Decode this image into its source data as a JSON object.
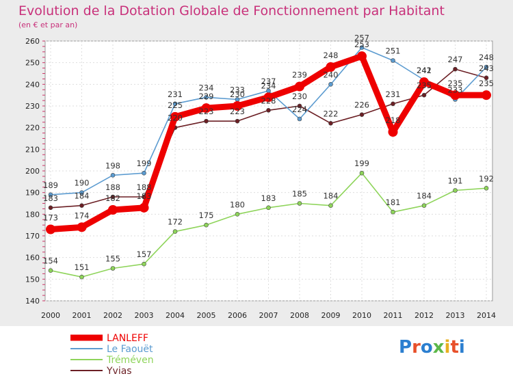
{
  "chart_data": {
    "type": "line",
    "title": "Evolution de la Dotation Globale de Fonctionnement par Habitant",
    "subtitle": "(en € et par an)",
    "x": [
      "2000",
      "2001",
      "2002",
      "2003",
      "2004",
      "2005",
      "2006",
      "2007",
      "2008",
      "2009",
      "2010",
      "2011",
      "2012",
      "2013",
      "2014"
    ],
    "ylim": [
      140,
      260
    ],
    "yticks": [
      140,
      150,
      160,
      170,
      180,
      190,
      200,
      210,
      220,
      230,
      240,
      250,
      260
    ],
    "grid": true,
    "legend_position": "bottom-left",
    "series": [
      {
        "name": "Yvias",
        "color": "#6b1f24",
        "values": [
          183,
          184,
          188,
          188,
          220,
          223,
          223,
          228,
          230,
          222,
          226,
          231,
          235,
          247,
          243
        ]
      },
      {
        "name": "Tréméven",
        "color": "#8ed45a",
        "values": [
          154,
          151,
          155,
          157,
          172,
          175,
          180,
          183,
          185,
          184,
          199,
          181,
          184,
          191,
          192
        ]
      },
      {
        "name": "Le Faouët",
        "color": "#5b9bd0",
        "values": [
          189,
          190,
          198,
          199,
          231,
          234,
          233,
          237,
          224,
          240,
          257,
          251,
          242,
          233,
          248
        ]
      },
      {
        "name": "LANLEFF",
        "color": "#ee0000",
        "values": [
          173,
          174,
          182,
          183,
          225,
          229,
          230,
          234,
          239,
          248,
          253,
          218,
          241,
          235,
          235
        ]
      }
    ],
    "legend": [
      "LANLEFF",
      "Le Faouët",
      "Tréméven",
      "Yvias"
    ]
  },
  "logo": {
    "text": "Proxiti"
  }
}
